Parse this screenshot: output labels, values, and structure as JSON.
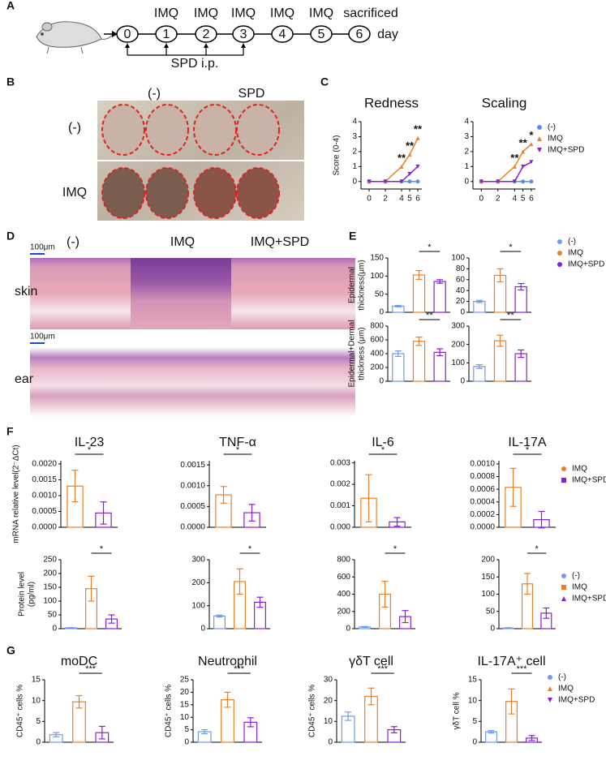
{
  "figure": {
    "labels": [
      "A",
      "B",
      "C",
      "D",
      "E",
      "F",
      "G"
    ],
    "timeline": {
      "days": [
        0,
        1,
        2,
        3,
        4,
        5,
        6
      ],
      "treatments": [
        "IMQ",
        "IMQ",
        "IMQ",
        "IMQ",
        "IMQ",
        "sacrificed"
      ],
      "unit": "day",
      "injection": "SPD i.p."
    },
    "photos": {
      "columns": [
        "(-)",
        "SPD"
      ],
      "rows": [
        "(-)",
        "IMQ"
      ]
    },
    "histology": {
      "columns": [
        "(-)",
        "IMQ",
        "IMQ+SPD"
      ],
      "rows": [
        "skin",
        "ear"
      ],
      "scale_bar": "100μm"
    }
  },
  "legends": [
    {
      "items": [
        {
          "name": "(-)",
          "color": "#5b8ee6",
          "marker": "circle"
        },
        {
          "name": "IMQ",
          "color": "#e8822a",
          "marker": "triangle"
        },
        {
          "name": "IMQ+SPD",
          "color": "#8a1fd8",
          "marker": "triangle-down"
        }
      ]
    },
    {
      "items": [
        {
          "name": "(-)",
          "color": "#6f9be8",
          "marker": "circle"
        },
        {
          "name": "IMQ",
          "color": "#e8822a",
          "marker": "circle"
        },
        {
          "name": "IMQ+SPD",
          "color": "#8a1fd8",
          "marker": "circle"
        }
      ]
    },
    {
      "items": [
        {
          "name": "IMQ",
          "color": "#e8822a",
          "marker": "circle"
        },
        {
          "name": "IMQ+SPD",
          "color": "#8a1fd8",
          "marker": "square"
        }
      ]
    },
    {
      "items": [
        {
          "name": "(-)",
          "color": "#6f9be8",
          "marker": "circle"
        },
        {
          "name": "IMQ",
          "color": "#e8822a",
          "marker": "square"
        },
        {
          "name": "IMQ+SPD",
          "color": "#8a1fd8",
          "marker": "triangle"
        }
      ]
    },
    {
      "items": [
        {
          "name": "(-)",
          "color": "#6f9be8",
          "marker": "circle"
        },
        {
          "name": "IMQ",
          "color": "#e8822a",
          "marker": "triangle"
        },
        {
          "name": "IMQ+SPD",
          "color": "#8a1fd8",
          "marker": "triangle-down"
        }
      ]
    }
  ],
  "chart_data": [
    {
      "type": "line",
      "title": "Redness",
      "ylabel": "Score (0-4)",
      "x": [
        0,
        2,
        4,
        5,
        6
      ],
      "xlim": [
        -1,
        6.5
      ],
      "xticks": [
        0,
        2,
        4,
        5,
        6
      ],
      "ylim": [
        -0.5,
        4
      ],
      "yticks": [
        0,
        1,
        2,
        3,
        4
      ],
      "series": [
        {
          "color": "#5b8ee6",
          "values": [
            0,
            0,
            0,
            0,
            0
          ]
        },
        {
          "color": "#e8822a",
          "values": [
            0,
            0,
            1,
            1.8,
            2.9
          ]
        },
        {
          "color": "#8a1fd8",
          "values": [
            0,
            0,
            0,
            0.5,
            1
          ]
        }
      ],
      "annotations": [
        null,
        null,
        "**",
        "**",
        "**"
      ]
    },
    {
      "type": "line",
      "title": "Scaling",
      "x": [
        0,
        2,
        4,
        5,
        6
      ],
      "xlim": [
        -1,
        6.5
      ],
      "xticks": [
        0,
        2,
        4,
        5,
        6
      ],
      "ylim": [
        -0.5,
        4
      ],
      "yticks": [
        0,
        1,
        2,
        3,
        4
      ],
      "series": [
        {
          "color": "#5b8ee6",
          "values": [
            0,
            0,
            0,
            0,
            0
          ]
        },
        {
          "color": "#e8822a",
          "values": [
            0,
            0,
            1,
            2,
            2.5
          ]
        },
        {
          "color": "#8a1fd8",
          "values": [
            0,
            0,
            0,
            1,
            1.3
          ]
        }
      ],
      "annotations": [
        null,
        null,
        "**",
        "**",
        "*"
      ]
    },
    {
      "type": "bar",
      "ylabel": [
        "Epidermal",
        "thickness(μm)"
      ],
      "values": [
        17,
        103,
        85
      ],
      "errors": [
        2,
        12,
        5
      ],
      "colors": [
        "#6f9be8",
        "#e8822a",
        "#8a1fd8"
      ],
      "ylim": [
        0,
        150
      ],
      "yticks": [
        0,
        50,
        100,
        150
      ],
      "annotation": "*"
    },
    {
      "type": "bar",
      "values": [
        20,
        68,
        47
      ],
      "errors": [
        2,
        12,
        6
      ],
      "colors": [
        "#6f9be8",
        "#e8822a",
        "#8a1fd8"
      ],
      "ylim": [
        0,
        100
      ],
      "yticks": [
        0,
        20,
        40,
        60,
        80,
        100
      ],
      "annotation": "*"
    },
    {
      "type": "bar",
      "ylabel": [
        "Epidermal+Dermal",
        "thickness (μm)"
      ],
      "values": [
        400,
        580,
        420
      ],
      "errors": [
        40,
        60,
        50
      ],
      "colors": [
        "#6f9be8",
        "#e8822a",
        "#8a1fd8"
      ],
      "ylim": [
        0,
        800
      ],
      "yticks": [
        0,
        200,
        400,
        600,
        800
      ],
      "annotation": "**"
    },
    {
      "type": "bar",
      "values": [
        80,
        220,
        150
      ],
      "errors": [
        10,
        30,
        20
      ],
      "colors": [
        "#6f9be8",
        "#e8822a",
        "#8a1fd8"
      ],
      "ylim": [
        0,
        300
      ],
      "yticks": [
        0,
        100,
        200,
        300
      ],
      "annotation": "**"
    },
    {
      "type": "bar",
      "title": "IL-23",
      "ylabel": [
        "mRNA relative level(2⁻ΔCt)"
      ],
      "values": [
        0.0013,
        0.00045
      ],
      "errors": [
        0.0005,
        0.00035
      ],
      "colors": [
        "#e8822a",
        "#8a1fd8"
      ],
      "ylim": [
        0,
        0.0021
      ],
      "yticks": [
        {
          "value": 0,
          "label": "0.0000"
        },
        {
          "value": 0.0005,
          "label": "0.0005"
        },
        {
          "value": 0.001,
          "label": "0.0010"
        },
        {
          "value": 0.0015,
          "label": "0.0015"
        },
        {
          "value": 0.002,
          "label": "0.0020"
        }
      ],
      "annotation": "*"
    },
    {
      "type": "bar",
      "title": "TNF-α",
      "values": [
        0.00078,
        0.00035
      ],
      "errors": [
        0.0002,
        0.0002
      ],
      "colors": [
        "#e8822a",
        "#8a1fd8"
      ],
      "ylim": [
        0,
        0.0016
      ],
      "yticks": [
        {
          "value": 0,
          "label": "0.0000"
        },
        {
          "value": 0.0005,
          "label": "0.0005"
        },
        {
          "value": 0.001,
          "label": "0.0010"
        },
        {
          "value": 0.0015,
          "label": "0.0015"
        }
      ],
      "annotation": "*"
    },
    {
      "type": "bar",
      "title": "IL-6",
      "values": [
        0.00135,
        0.00025
      ],
      "errors": [
        0.0011,
        0.0002
      ],
      "colors": [
        "#e8822a",
        "#8a1fd8"
      ],
      "ylim": [
        0,
        0.0031
      ],
      "yticks": [
        {
          "value": 0,
          "label": "0.000"
        },
        {
          "value": 0.001,
          "label": "0.001"
        },
        {
          "value": 0.002,
          "label": "0.002"
        },
        {
          "value": 0.003,
          "label": "0.003"
        }
      ],
      "annotation": "*"
    },
    {
      "type": "bar",
      "title": "IL-17A",
      "values": [
        0.00063,
        0.00012
      ],
      "errors": [
        0.0003,
        0.00013
      ],
      "colors": [
        "#e8822a",
        "#8a1fd8"
      ],
      "ylim": [
        0,
        0.00105
      ],
      "yticks": [
        {
          "value": 0,
          "label": "0.0000"
        },
        {
          "value": 0.0002,
          "label": "0.0002"
        },
        {
          "value": 0.0004,
          "label": "0.0004"
        },
        {
          "value": 0.0006,
          "label": "0.0006"
        },
        {
          "value": 0.0008,
          "label": "0.0008"
        },
        {
          "value": 0.001,
          "label": "0.0010"
        }
      ],
      "annotation": "*"
    },
    {
      "type": "bar",
      "ylabel": [
        "Protein level",
        "(pg/ml)"
      ],
      "values": [
        3,
        145,
        35
      ],
      "errors": [
        1,
        45,
        15
      ],
      "colors": [
        "#6f9be8",
        "#e8822a",
        "#8a1fd8"
      ],
      "ylim": [
        0,
        250
      ],
      "yticks": [
        0,
        50,
        100,
        150,
        200,
        250
      ],
      "annotation": "*"
    },
    {
      "type": "bar",
      "values": [
        55,
        205,
        115
      ],
      "errors": [
        4,
        55,
        22
      ],
      "colors": [
        "#6f9be8",
        "#e8822a",
        "#8a1fd8"
      ],
      "ylim": [
        0,
        300
      ],
      "yticks": [
        0,
        100,
        200,
        300
      ],
      "annotation": "*"
    },
    {
      "type": "bar",
      "values": [
        20,
        400,
        140
      ],
      "errors": [
        5,
        150,
        70
      ],
      "colors": [
        "#6f9be8",
        "#e8822a",
        "#8a1fd8"
      ],
      "ylim": [
        0,
        800
      ],
      "yticks": [
        0,
        200,
        400,
        600,
        800
      ],
      "annotation": "*"
    },
    {
      "type": "bar",
      "values": [
        2,
        130,
        45
      ],
      "errors": [
        1,
        30,
        15
      ],
      "colors": [
        "#6f9be8",
        "#e8822a",
        "#8a1fd8"
      ],
      "ylim": [
        0,
        200
      ],
      "yticks": [
        0,
        50,
        100,
        150,
        200
      ],
      "annotation": "*"
    },
    {
      "type": "bar",
      "title": "moDC",
      "ylabel": [
        "CD45⁺ cells %"
      ],
      "values": [
        1.8,
        9.7,
        2.3
      ],
      "errors": [
        0.5,
        1.5,
        1.5
      ],
      "colors": [
        "#6f9be8",
        "#e8822a",
        "#8a1fd8"
      ],
      "ylim": [
        0,
        15
      ],
      "yticks": [
        0,
        5,
        10,
        15
      ],
      "annotation": "***"
    },
    {
      "type": "bar",
      "title": "Neutrophil",
      "ylabel": [
        "CD45⁺ cells %"
      ],
      "values": [
        4.2,
        17,
        8
      ],
      "errors": [
        0.8,
        3,
        1.8
      ],
      "colors": [
        "#6f9be8",
        "#e8822a",
        "#8a1fd8"
      ],
      "ylim": [
        0,
        25
      ],
      "yticks": [
        0,
        5,
        10,
        15,
        20,
        25
      ],
      "annotation": "***"
    },
    {
      "type": "bar",
      "title": "γδT cell",
      "ylabel": [
        "CD45⁺ cells %"
      ],
      "values": [
        12.5,
        22,
        6
      ],
      "errors": [
        2,
        4,
        1.5
      ],
      "colors": [
        "#6f9be8",
        "#e8822a",
        "#8a1fd8"
      ],
      "ylim": [
        0,
        30
      ],
      "yticks": [
        0,
        10,
        20,
        30
      ],
      "annotation": "***"
    },
    {
      "type": "bar",
      "title": "IL-17A⁺ cell",
      "ylabel": [
        "γδT cell %"
      ],
      "values": [
        2.5,
        9.8,
        1
      ],
      "errors": [
        0.3,
        3,
        0.6
      ],
      "colors": [
        "#6f9be8",
        "#e8822a",
        "#8a1fd8"
      ],
      "ylim": [
        0,
        15
      ],
      "yticks": [
        0,
        5,
        10,
        15
      ],
      "annotation": "***"
    }
  ]
}
